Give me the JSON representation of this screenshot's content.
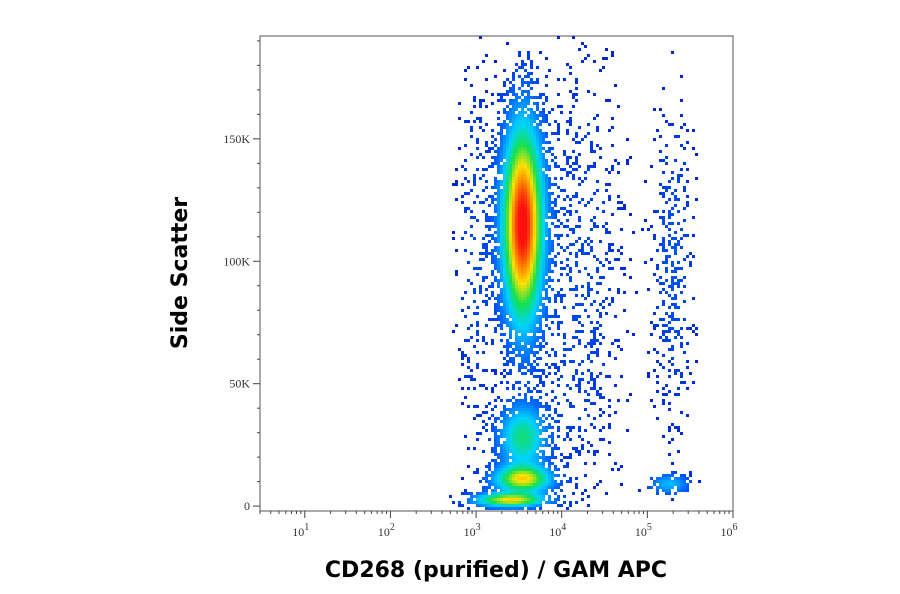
{
  "chart_data": {
    "type": "scatter",
    "title": "",
    "xlabel": "CD268 (purified) / GAM APC",
    "ylabel": "Side Scatter",
    "x_scale": "log",
    "xlim": [
      3,
      1000000
    ],
    "ylim": [
      -2000,
      192000
    ],
    "x_ticks": [
      {
        "value": 10,
        "base": "10",
        "exp": "1"
      },
      {
        "value": 100,
        "base": "10",
        "exp": "2"
      },
      {
        "value": 1000,
        "base": "10",
        "exp": "3"
      },
      {
        "value": 10000,
        "base": "10",
        "exp": "4"
      },
      {
        "value": 100000,
        "base": "10",
        "exp": "5"
      },
      {
        "value": 1000000,
        "base": "10",
        "exp": "6"
      }
    ],
    "y_ticks": [
      {
        "value": 0,
        "label": "0"
      },
      {
        "value": 50000,
        "label": "50K"
      },
      {
        "value": 100000,
        "label": "100K"
      },
      {
        "value": 150000,
        "label": "150K"
      }
    ],
    "density_coloring": "pseudocolor (blue low → green → yellow → red high)",
    "populations": [
      {
        "x": 3500,
        "y": 115000,
        "sx_log": 0.14,
        "sy": 24000,
        "weight": 1.0,
        "peak": "red"
      },
      {
        "x": 3500,
        "y": 28000,
        "sx_log": 0.17,
        "sy": 8000,
        "weight": 0.35,
        "peak": "green"
      },
      {
        "x": 3500,
        "y": 11000,
        "sx_log": 0.2,
        "sy": 3500,
        "weight": 0.6,
        "peak": "red"
      },
      {
        "x": 2500,
        "y": 2500,
        "sx_log": 0.25,
        "sy": 1800,
        "weight": 0.6,
        "peak": "red"
      },
      {
        "x": 180000,
        "y": 9000,
        "sx_log": 0.14,
        "sy": 2500,
        "weight": 0.18,
        "peak": "cyan"
      },
      {
        "x": 200000,
        "y": 100000,
        "sx_log": 0.15,
        "sy": 40000,
        "weight": 0.04,
        "peak": "blue"
      },
      {
        "x": 1000,
        "y": 100000,
        "sx_log": 0.14,
        "sy": 50000,
        "weight": 0.03,
        "peak": "blue"
      },
      {
        "x": 15000,
        "y": 90000,
        "sx_log": 0.35,
        "sy": 60000,
        "weight": 0.03,
        "peak": "blue"
      }
    ],
    "grid": false,
    "legend": "none"
  },
  "colors": {
    "low": "#0010c8",
    "mid_low": "#00c8ff",
    "mid": "#10e040",
    "mid_high": "#ffe000",
    "high": "#ff1010",
    "frame": "#555555"
  }
}
